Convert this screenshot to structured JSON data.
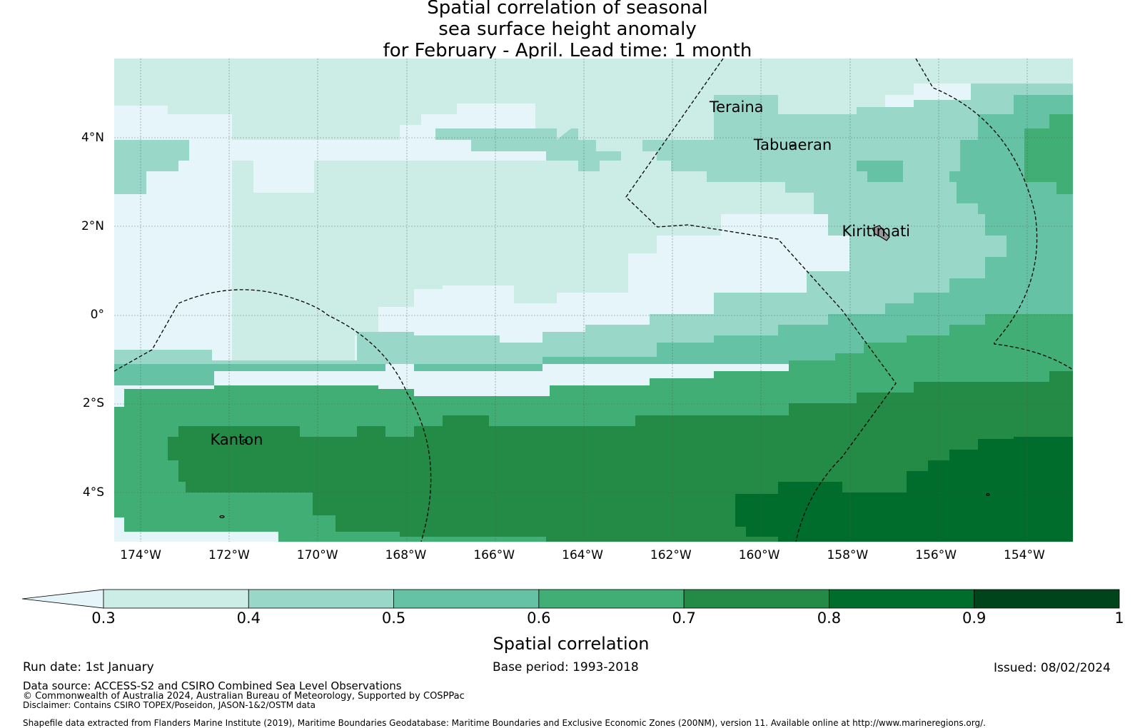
{
  "title": {
    "line1": "Spatial correlation of seasonal",
    "line2": "sea surface height anomaly",
    "line3": "for February - April. Lead time: 1 month"
  },
  "map": {
    "lon_range": [
      -174.6,
      -152.9
    ],
    "lat_range": [
      -5.1,
      5.8
    ],
    "x_ticks": [
      "174°W",
      "172°W",
      "170°W",
      "168°W",
      "166°W",
      "164°W",
      "162°W",
      "160°W",
      "158°W",
      "156°W",
      "154°W"
    ],
    "x_tick_values": [
      -174,
      -172,
      -170,
      -168,
      -166,
      -164,
      -162,
      -160,
      -158,
      -156,
      -154
    ],
    "y_ticks": [
      "4°N",
      "2°N",
      "0°",
      "2°S",
      "4°S"
    ],
    "y_tick_values": [
      4,
      2,
      0,
      -2,
      -4
    ],
    "places": [
      {
        "name": "Teraina",
        "lon": -160.4,
        "lat": 4.7
      },
      {
        "name": "Tabuaeran",
        "lon": -159.4,
        "lat": 3.85
      },
      {
        "name": "Kiritimati",
        "lon": -157.4,
        "lat": 1.9
      },
      {
        "name": "Kanton",
        "lon": -171.7,
        "lat": -2.8
      }
    ],
    "colors": {
      "c03": "#e5f5f9",
      "c04": "#ccece6",
      "c05": "#99d8c9",
      "c06": "#66c2a4",
      "c07": "#41ae76",
      "c08": "#238b45",
      "c09": "#006d2c",
      "c10": "#00441b"
    }
  },
  "colorbar": {
    "label": "Spatial correlation",
    "ticks": [
      "0.3",
      "0.4",
      "0.5",
      "0.6",
      "0.7",
      "0.8",
      "0.9",
      "1"
    ],
    "colors": [
      "#ccece6",
      "#99d8c9",
      "#66c2a4",
      "#41ae76",
      "#238b45",
      "#006d2c",
      "#00441b"
    ],
    "extend_color": "#e5f5f9"
  },
  "footer": {
    "run_date": "Run date: 1st January",
    "base_period": "Base period: 1993-2018",
    "issued": "Issued: 08/02/2024",
    "data_source": "Data source: ACCESS-S2 and CSIRO Combined Sea Level Observations",
    "copyright": "© Commonwealth of Australia 2024, Australian Bureau of Meteorology, Supported by COSPPac",
    "disclaimer": "Disclaimer: Contains CSIRO TOPEX/Poseidon, JASON-1&2/OSTM data",
    "shapefile": "Shapefile data extracted from Flanders Marine Institute (2019), Maritime Boundaries Geodatabase: Maritime Boundaries and Exclusive Economic Zones (200NM), version 11. Available online at http://www.marineregions.org/."
  }
}
